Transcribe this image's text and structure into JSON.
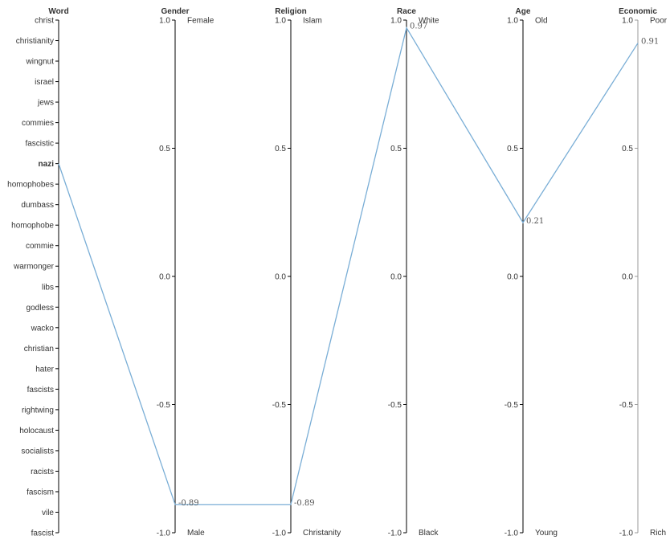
{
  "chart_data": {
    "type": "parallel-coordinates",
    "selected_word": "nazi",
    "words": [
      "christ",
      "christianity",
      "wingnut",
      "israel",
      "jews",
      "commies",
      "fascistic",
      "nazi",
      "homophobes",
      "dumbass",
      "homophobe",
      "commie",
      "warmonger",
      "libs",
      "godless",
      "wacko",
      "christian",
      "hater",
      "fascists",
      "rightwing",
      "holocaust",
      "socialists",
      "racists",
      "fascism",
      "vile",
      "fascist"
    ],
    "axes": [
      {
        "name": "Word"
      },
      {
        "name": "Gender",
        "top_pole": "Female",
        "bottom_pole": "Male",
        "ylim": [
          -1,
          1
        ],
        "ticks": [
          1.0,
          0.5,
          0.0,
          -0.5,
          -1.0
        ]
      },
      {
        "name": "Religion",
        "top_pole": "Islam",
        "bottom_pole": "Christanity",
        "ylim": [
          -1,
          1
        ],
        "ticks": [
          1.0,
          0.5,
          0.0,
          -0.5,
          -1.0
        ]
      },
      {
        "name": "Race",
        "top_pole": "White",
        "bottom_pole": "Black",
        "ylim": [
          -1,
          1
        ],
        "ticks": [
          1.0,
          0.5,
          0.0,
          -0.5,
          -1.0
        ]
      },
      {
        "name": "Age",
        "top_pole": "Old",
        "bottom_pole": "Young",
        "ylim": [
          -1,
          1
        ],
        "ticks": [
          1.0,
          0.5,
          0.0,
          -0.5,
          -1.0
        ]
      },
      {
        "name": "Economic",
        "top_pole": "Poor",
        "bottom_pole": "Rich",
        "ylim": [
          -1,
          1
        ],
        "ticks": [
          1.0,
          0.5,
          0.0,
          -0.5,
          -1.0
        ]
      }
    ],
    "series": [
      {
        "values": [
          -0.89,
          -0.89,
          0.97,
          0.21,
          0.91
        ]
      }
    ],
    "line_color": "#7aaed6",
    "grid": false
  }
}
